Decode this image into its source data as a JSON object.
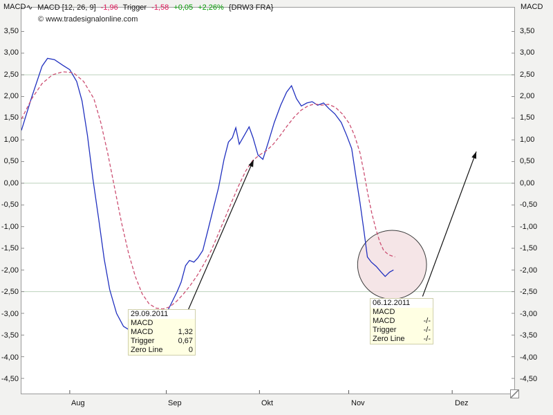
{
  "header": {
    "left_axis_title": "MACD",
    "right_axis_title": "MACD",
    "legend": {
      "icon": "∿",
      "name": "MACD [12, 26, 9]",
      "macd_value": "-1,96",
      "trigger_label": "Trigger",
      "trigger_value": "-1,58",
      "change_abs": "+0,05",
      "change_pct": "+2,26%",
      "symbol": "{DRW3 FRA}"
    },
    "copyright": "© www.tradesignalonline.com"
  },
  "chart_data": {
    "type": "line",
    "title": "MACD [12, 26, 9] {DRW3 FRA}",
    "ylim": [
      -4.85,
      4.05
    ],
    "grid_values": [
      2.5,
      0.0,
      -2.5
    ],
    "colors": {
      "grid": "#bcd2bc",
      "macd_line": "#1f2fbf",
      "trigger_line": "#cc4f72",
      "arrow": "#111111",
      "circle_fill": "#eed3d7",
      "circle_stroke": "#3a3a3a"
    },
    "yticks": [
      {
        "value": 3.5,
        "label": "3,50"
      },
      {
        "value": 3.0,
        "label": "3,00"
      },
      {
        "value": 2.5,
        "label": "2,50"
      },
      {
        "value": 2.0,
        "label": "2,00"
      },
      {
        "value": 1.5,
        "label": "1,50"
      },
      {
        "value": 1.0,
        "label": "1,00"
      },
      {
        "value": 0.5,
        "label": "0,50"
      },
      {
        "value": 0.0,
        "label": "0,00"
      },
      {
        "value": -0.5,
        "label": "-0,50"
      },
      {
        "value": -1.0,
        "label": "-1,00"
      },
      {
        "value": -1.5,
        "label": "-1,50"
      },
      {
        "value": -2.0,
        "label": "-2,00"
      },
      {
        "value": -2.5,
        "label": "-2,50"
      },
      {
        "value": -3.0,
        "label": "-3,00"
      },
      {
        "value": -3.5,
        "label": "-3,50"
      },
      {
        "value": -4.0,
        "label": "-4,00"
      },
      {
        "value": -4.5,
        "label": "-4,50"
      }
    ],
    "months": [
      {
        "label": "Aug",
        "x": 0.098
      },
      {
        "label": "Sep",
        "x": 0.294
      },
      {
        "label": "Okt",
        "x": 0.483
      },
      {
        "label": "Nov",
        "x": 0.664
      },
      {
        "label": "Dez",
        "x": 0.874
      }
    ],
    "series": [
      {
        "name": "MACD",
        "style": "solid",
        "color": "#1f2fbf",
        "points": [
          [
            0.0,
            1.22
          ],
          [
            0.021,
            1.99
          ],
          [
            0.042,
            2.7
          ],
          [
            0.053,
            2.88
          ],
          [
            0.067,
            2.85
          ],
          [
            0.084,
            2.72
          ],
          [
            0.098,
            2.62
          ],
          [
            0.112,
            2.35
          ],
          [
            0.123,
            1.9
          ],
          [
            0.134,
            1.1
          ],
          [
            0.145,
            0.1
          ],
          [
            0.157,
            -0.85
          ],
          [
            0.168,
            -1.75
          ],
          [
            0.179,
            -2.45
          ],
          [
            0.193,
            -3.0
          ],
          [
            0.207,
            -3.3
          ],
          [
            0.224,
            -3.42
          ],
          [
            0.245,
            -3.45
          ],
          [
            0.263,
            -3.4
          ],
          [
            0.28,
            -3.25
          ],
          [
            0.294,
            -3.0
          ],
          [
            0.305,
            -2.75
          ],
          [
            0.316,
            -2.5
          ],
          [
            0.324,
            -2.28
          ],
          [
            0.333,
            -1.9
          ],
          [
            0.341,
            -1.78
          ],
          [
            0.35,
            -1.82
          ],
          [
            0.358,
            -1.72
          ],
          [
            0.368,
            -1.55
          ],
          [
            0.378,
            -1.1
          ],
          [
            0.389,
            -0.6
          ],
          [
            0.4,
            -0.1
          ],
          [
            0.411,
            0.55
          ],
          [
            0.42,
            0.95
          ],
          [
            0.428,
            1.05
          ],
          [
            0.435,
            1.28
          ],
          [
            0.442,
            0.9
          ],
          [
            0.452,
            1.1
          ],
          [
            0.462,
            1.3
          ],
          [
            0.47,
            1.05
          ],
          [
            0.48,
            0.65
          ],
          [
            0.49,
            0.55
          ],
          [
            0.501,
            0.95
          ],
          [
            0.513,
            1.4
          ],
          [
            0.526,
            1.8
          ],
          [
            0.538,
            2.1
          ],
          [
            0.548,
            2.25
          ],
          [
            0.558,
            1.95
          ],
          [
            0.568,
            1.78
          ],
          [
            0.579,
            1.85
          ],
          [
            0.59,
            1.88
          ],
          [
            0.601,
            1.8
          ],
          [
            0.613,
            1.85
          ],
          [
            0.624,
            1.72
          ],
          [
            0.636,
            1.6
          ],
          [
            0.649,
            1.4
          ],
          [
            0.66,
            1.1
          ],
          [
            0.67,
            0.8
          ],
          [
            0.678,
            0.2
          ],
          [
            0.687,
            -0.45
          ],
          [
            0.695,
            -1.1
          ],
          [
            0.702,
            -1.7
          ],
          [
            0.71,
            -1.82
          ],
          [
            0.72,
            -1.92
          ],
          [
            0.73,
            -2.05
          ],
          [
            0.738,
            -2.15
          ],
          [
            0.747,
            -2.05
          ],
          [
            0.755,
            -2.0
          ]
        ]
      },
      {
        "name": "Trigger",
        "style": "dashed",
        "color": "#cc4f72",
        "points": [
          [
            0.0,
            1.48
          ],
          [
            0.021,
            1.95
          ],
          [
            0.042,
            2.3
          ],
          [
            0.063,
            2.5
          ],
          [
            0.084,
            2.57
          ],
          [
            0.105,
            2.55
          ],
          [
            0.126,
            2.35
          ],
          [
            0.147,
            1.95
          ],
          [
            0.161,
            1.4
          ],
          [
            0.175,
            0.7
          ],
          [
            0.189,
            -0.1
          ],
          [
            0.203,
            -0.9
          ],
          [
            0.217,
            -1.6
          ],
          [
            0.231,
            -2.15
          ],
          [
            0.245,
            -2.55
          ],
          [
            0.259,
            -2.78
          ],
          [
            0.273,
            -2.88
          ],
          [
            0.287,
            -2.9
          ],
          [
            0.301,
            -2.85
          ],
          [
            0.315,
            -2.72
          ],
          [
            0.329,
            -2.55
          ],
          [
            0.343,
            -2.35
          ],
          [
            0.357,
            -2.12
          ],
          [
            0.371,
            -1.85
          ],
          [
            0.385,
            -1.55
          ],
          [
            0.399,
            -1.18
          ],
          [
            0.413,
            -0.8
          ],
          [
            0.427,
            -0.42
          ],
          [
            0.441,
            -0.05
          ],
          [
            0.455,
            0.28
          ],
          [
            0.469,
            0.52
          ],
          [
            0.483,
            0.65
          ],
          [
            0.497,
            0.75
          ],
          [
            0.511,
            0.9
          ],
          [
            0.525,
            1.1
          ],
          [
            0.539,
            1.32
          ],
          [
            0.553,
            1.52
          ],
          [
            0.567,
            1.68
          ],
          [
            0.581,
            1.78
          ],
          [
            0.595,
            1.83
          ],
          [
            0.609,
            1.8
          ],
          [
            0.623,
            1.82
          ],
          [
            0.637,
            1.75
          ],
          [
            0.651,
            1.6
          ],
          [
            0.665,
            1.38
          ],
          [
            0.676,
            1.1
          ],
          [
            0.687,
            0.7
          ],
          [
            0.695,
            0.25
          ],
          [
            0.703,
            -0.25
          ],
          [
            0.711,
            -0.7
          ],
          [
            0.719,
            -1.05
          ],
          [
            0.727,
            -1.35
          ],
          [
            0.735,
            -1.55
          ],
          [
            0.745,
            -1.65
          ],
          [
            0.758,
            -1.7
          ]
        ]
      }
    ],
    "annotations": {
      "circle": {
        "x": 0.752,
        "value": -1.88,
        "radius_px": 50
      },
      "arrows": [
        {
          "from": [
            0.338,
            -2.93
          ],
          "to": [
            0.471,
            0.54
          ]
        },
        {
          "from": [
            0.814,
            -2.61
          ],
          "to": [
            0.923,
            0.73
          ]
        }
      ]
    }
  },
  "tooltips": [
    {
      "date": "29.09.2011",
      "section": "MACD",
      "rows": [
        [
          "MACD",
          "1,32"
        ],
        [
          "Trigger",
          "0,67"
        ],
        [
          "Zero Line",
          "0"
        ]
      ]
    },
    {
      "date": "06.12.2011",
      "section": "MACD",
      "rows": [
        [
          "MACD",
          "-/-"
        ],
        [
          "Trigger",
          "-/-"
        ],
        [
          "Zero Line",
          "-/-"
        ]
      ]
    }
  ]
}
